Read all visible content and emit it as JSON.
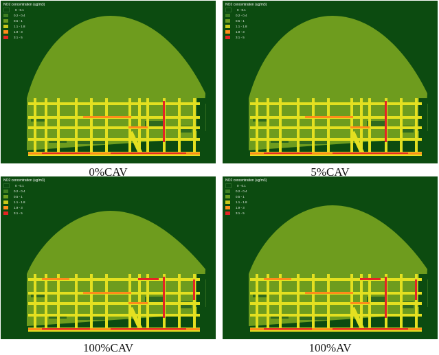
{
  "legend": {
    "title": "NO2 concentration (ug/m3)",
    "items": [
      {
        "label": "0 - 0.1",
        "color": "#0c4b10"
      },
      {
        "label": "0.2 - 0.4",
        "color": "#3f7f22"
      },
      {
        "label": "0.5 - 1",
        "color": "#6e9c1e"
      },
      {
        "label": "1.1 - 1.8",
        "color": "#c8c81a"
      },
      {
        "label": "1.9 - 3",
        "color": "#ff8c1a"
      },
      {
        "label": "3.1 - 5",
        "color": "#e52424"
      }
    ]
  },
  "panels": [
    {
      "caption": "0%CAV"
    },
    {
      "caption": "5%CAV"
    },
    {
      "caption": "100%CAV"
    },
    {
      "caption": "100%AV"
    }
  ],
  "colors": {
    "background": "#0c4b10",
    "plume": "#6e9c1e",
    "dark_patch": "#2f6a1e",
    "road_yellow": "#e4e020",
    "road_orange": "#ff8c1a",
    "road_red": "#e52424"
  }
}
